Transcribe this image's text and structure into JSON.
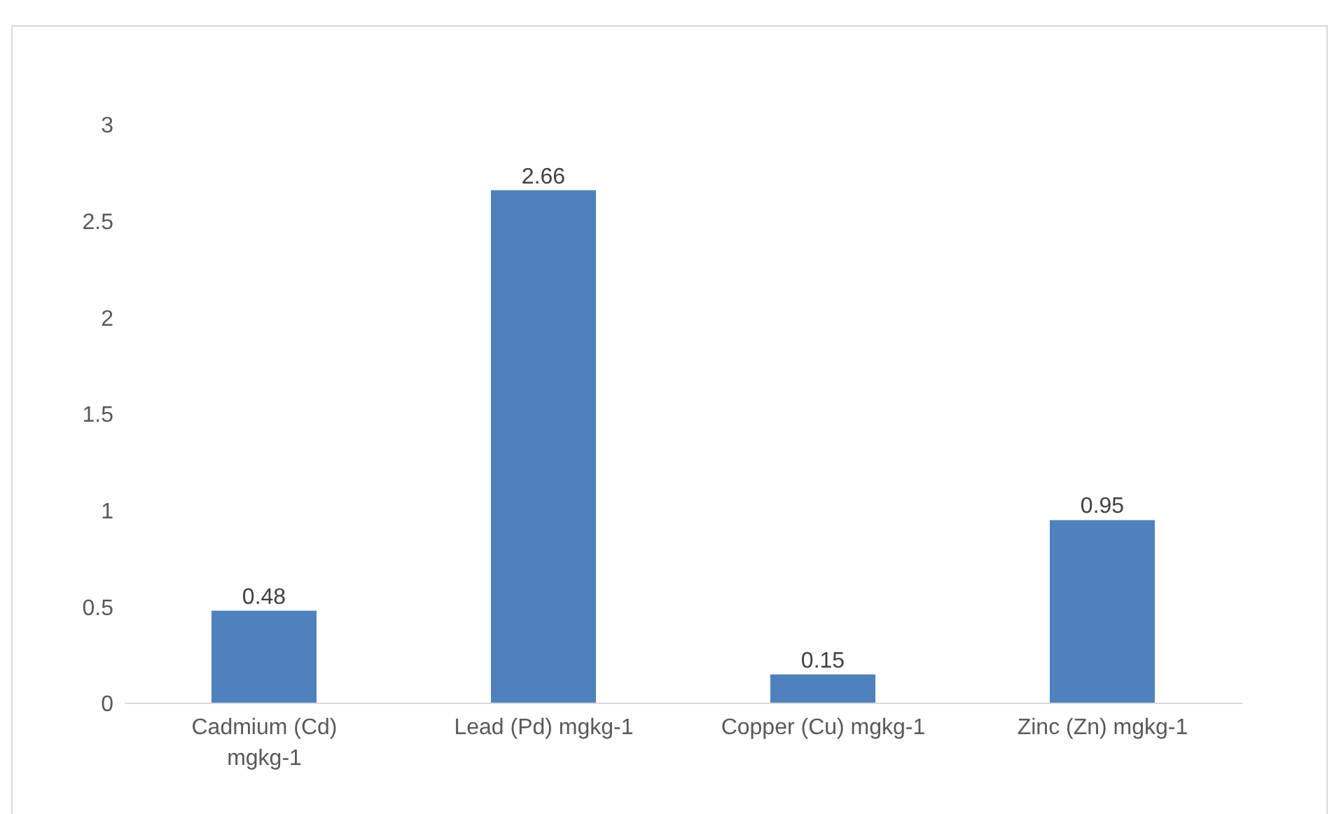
{
  "chart_data": {
    "type": "bar",
    "categories": [
      "Cadmium (Cd) mgkg-1",
      "Lead (Pd) mgkg-1",
      "Copper (Cu) mgkg-1",
      "Zinc (Zn) mgkg-1"
    ],
    "values": [
      0.48,
      2.66,
      0.15,
      0.95
    ],
    "color": "#4f81bd",
    "data_labels": true,
    "ylim": [
      0,
      3
    ],
    "yticks": [
      0,
      0.5,
      1,
      1.5,
      2,
      2.5,
      3
    ],
    "grid": false,
    "legend": false
  }
}
